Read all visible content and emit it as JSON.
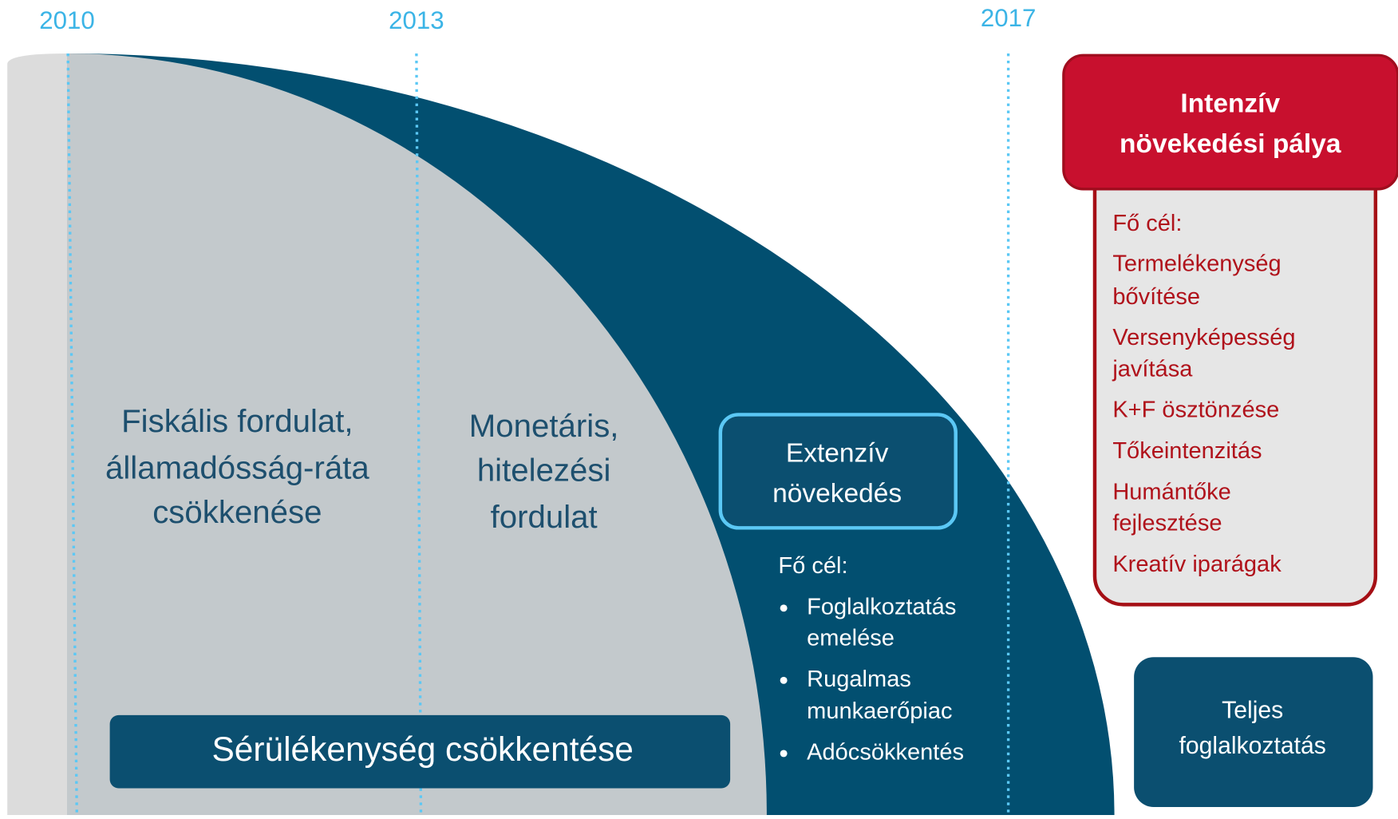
{
  "timeline": {
    "years": [
      "2010",
      "2013",
      "2017"
    ]
  },
  "phases": [
    {
      "lines": [
        "Fiskális fordulat,",
        "államadósság-ráta",
        "csökkenése"
      ]
    },
    {
      "lines": [
        "Monetáris,",
        "hitelezési",
        "fordulat"
      ]
    }
  ],
  "base_bar": {
    "label": "Sérülékenység csökkentése"
  },
  "extensive": {
    "title_lines": [
      "Extenzív",
      "növekedés"
    ],
    "goal_label": "Fő cél:",
    "goals": [
      [
        "Foglalkoztatás",
        "emelése"
      ],
      [
        "Rugalmas",
        "munkaerőpiac"
      ],
      [
        "Adócsökkentés"
      ]
    ]
  },
  "intensive": {
    "title_lines": [
      "Intenzív",
      "növekedési pálya"
    ],
    "goal_label": "Fő cél:",
    "goals": [
      [
        "Termelékenység",
        "bővítése"
      ],
      [
        "Versenyképesség",
        "javítása"
      ],
      [
        "K+F ösztönzése"
      ],
      [
        "Tőkeintenzitás"
      ],
      [
        "Humántőke",
        "fejlesztése"
      ],
      [
        "Kreatív iparágak"
      ]
    ]
  },
  "full_employment": {
    "lines": [
      "Teljes",
      "foglalkoztatás"
    ]
  }
}
